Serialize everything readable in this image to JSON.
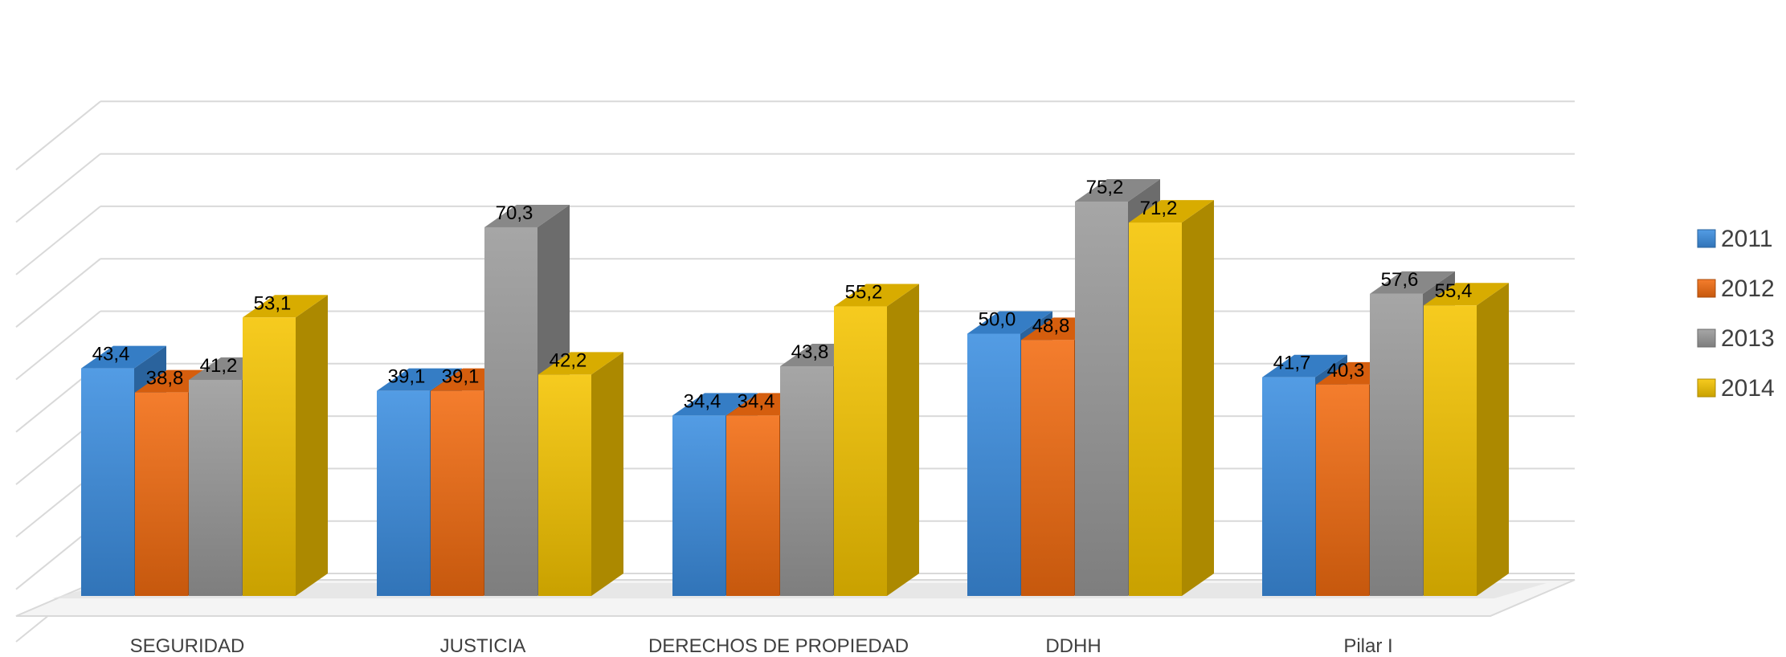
{
  "chart_data": {
    "type": "bar",
    "categories": [
      "SEGURIDAD",
      "JUSTICIA",
      "DERECHOS DE PROPIEDAD",
      "DDHH",
      "Pilar I"
    ],
    "series": [
      {
        "name": "2011",
        "values": [
          43.4,
          39.1,
          34.4,
          50.0,
          41.7
        ]
      },
      {
        "name": "2012",
        "values": [
          38.8,
          39.1,
          34.4,
          48.8,
          40.3
        ]
      },
      {
        "name": "2013",
        "values": [
          41.2,
          70.3,
          43.8,
          75.2,
          57.6
        ]
      },
      {
        "name": "2014",
        "values": [
          53.1,
          42.2,
          55.2,
          71.2,
          55.4
        ]
      }
    ],
    "data_labels": [
      [
        "43,4",
        "39,1",
        "34,4",
        "50,0",
        "41,7"
      ],
      [
        "38,8",
        "39,1",
        "34,4",
        "48,8",
        "40,3"
      ],
      [
        "41,2",
        "70,3",
        "43,8",
        "75,2",
        "57,6"
      ],
      [
        "53,1",
        "42,2",
        "55,2",
        "71,2",
        "55,4"
      ]
    ],
    "ylim": [
      0,
      90
    ],
    "grid": true,
    "legend": "right",
    "colors": {
      "2011": "#3c8ee0",
      "2012": "#f26b10",
      "2013": "#9a9a9a",
      "2014": "#f5c400"
    }
  }
}
